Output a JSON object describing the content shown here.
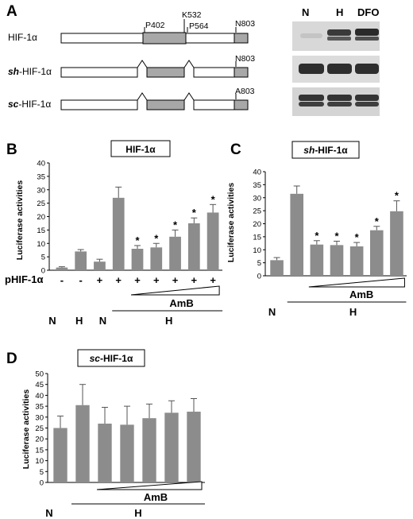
{
  "panel_a": {
    "letter": "A",
    "constructs": [
      {
        "prefix": "",
        "name": "HIF-1α",
        "end_label": "N803",
        "sites": [
          "P402",
          "K532",
          "P564"
        ]
      },
      {
        "prefix": "sh",
        "name": "-HIF-1α",
        "end_label": "N803",
        "sites": []
      },
      {
        "prefix": "sc",
        "name": "-HIF-1α",
        "end_label": "A803",
        "sites": []
      }
    ],
    "blot_lanes": [
      "N",
      "H",
      "DFO"
    ]
  },
  "chart_data": [
    {
      "panel": "B",
      "type": "bar",
      "title": "HIF-1α",
      "ylabel": "Luciferase activities",
      "ylim": [
        0,
        40
      ],
      "yticks": [
        0,
        5,
        10,
        15,
        20,
        25,
        30,
        35,
        40
      ],
      "values": [
        1,
        7,
        3.2,
        27,
        8,
        8.5,
        12.5,
        17.5,
        21.5
      ],
      "errors": [
        0.3,
        0.7,
        0.9,
        4,
        1.2,
        1.5,
        2.5,
        2,
        3
      ],
      "significant": [
        false,
        false,
        false,
        false,
        true,
        true,
        true,
        true,
        true
      ],
      "row_label": "pHIF-1α",
      "row_marks": [
        "-",
        "-",
        "+",
        "+",
        "+",
        "+",
        "+",
        "+",
        "+"
      ],
      "wedge_label": "AmB",
      "condition_labels": [
        "N",
        "H",
        "N",
        "H"
      ],
      "color": "#8c8c8c"
    },
    {
      "panel": "C",
      "type": "bar",
      "title_prefix": "sh",
      "title": "-HIF-1α",
      "ylabel": "Luciferase activities",
      "ylim": [
        0,
        40
      ],
      "yticks": [
        0,
        5,
        10,
        15,
        20,
        25,
        30,
        35,
        40
      ],
      "values": [
        6,
        31.5,
        12,
        11.8,
        11.3,
        17.5,
        24.8
      ],
      "errors": [
        1,
        3,
        1.5,
        1.5,
        1.5,
        1.5,
        4
      ],
      "significant": [
        false,
        false,
        true,
        true,
        true,
        true,
        true
      ],
      "wedge_label": "AmB",
      "condition_labels": [
        "N",
        "H"
      ],
      "color": "#8c8c8c"
    },
    {
      "panel": "D",
      "type": "bar",
      "title_prefix": "sc",
      "title": "-HIF-1α",
      "ylabel": "Luciferase activities",
      "ylim": [
        0,
        50
      ],
      "yticks": [
        0,
        5,
        10,
        15,
        20,
        25,
        30,
        35,
        40,
        45,
        50
      ],
      "values": [
        25,
        35.5,
        27,
        26.5,
        29.5,
        32,
        32.5
      ],
      "errors": [
        5.5,
        9.5,
        7.5,
        8.5,
        6.5,
        5.5,
        6
      ],
      "significant": [
        false,
        false,
        false,
        false,
        false,
        false,
        false
      ],
      "wedge_label": "AmB",
      "condition_labels": [
        "N",
        "H"
      ],
      "color": "#8c8c8c"
    }
  ]
}
